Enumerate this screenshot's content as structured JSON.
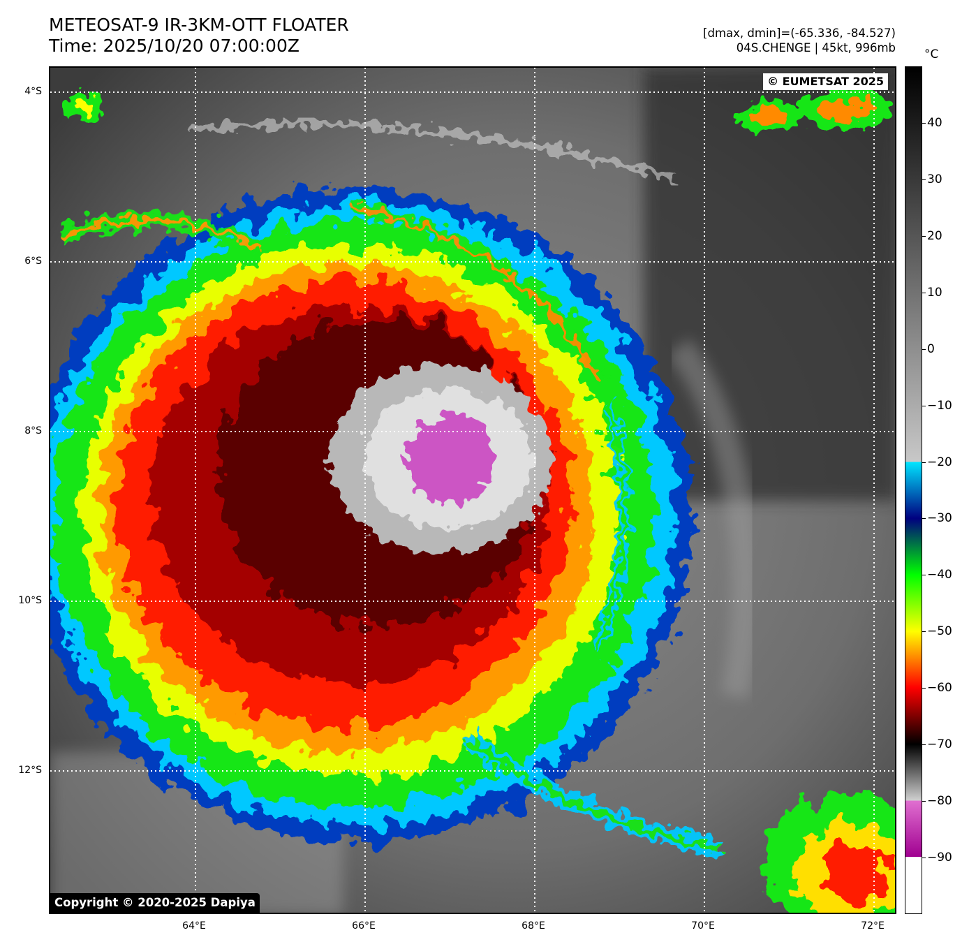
{
  "header": {
    "title": "METEOSAT-9 IR-3KM-OTT FLOATER",
    "time": "Time: 2025/10/20 07:00:00Z",
    "range": "[dmax, dmin]=(-65.336, -84.527)",
    "storm": "04S.CHENGE | 45kt, 996mb"
  },
  "map": {
    "copyright_top": "© EUMETSAT 2025",
    "copyright_bottom": "Copyright © 2020-2025 Dapiya",
    "lat_labels": [
      "4°S",
      "6°S",
      "8°S",
      "10°S",
      "12°S"
    ],
    "lon_labels": [
      "64°E",
      "66°E",
      "68°E",
      "70°E",
      "72°E"
    ]
  },
  "colorbar": {
    "unit": "°C",
    "labels": [
      "40",
      "30",
      "20",
      "10",
      "0",
      "−10",
      "−20",
      "−30",
      "−40",
      "−50",
      "−60",
      "−70",
      "−80",
      "−90"
    ],
    "stops": [
      {
        "t": 50,
        "color": "#000000"
      },
      {
        "t": -20,
        "color": "#c8c8c8"
      },
      {
        "t": -20.01,
        "color": "#00e5ff"
      },
      {
        "t": -30,
        "color": "#000080"
      },
      {
        "t": -40,
        "color": "#00ff00"
      },
      {
        "t": -50,
        "color": "#ffff00"
      },
      {
        "t": -60,
        "color": "#ff0000"
      },
      {
        "t": -70,
        "color": "#000000"
      },
      {
        "t": -80,
        "color": "#d0d0d0"
      },
      {
        "t": -80.01,
        "color": "#e070d0"
      },
      {
        "t": -90,
        "color": "#a00090"
      },
      {
        "t": -90.01,
        "color": "#ffffff"
      }
    ]
  }
}
